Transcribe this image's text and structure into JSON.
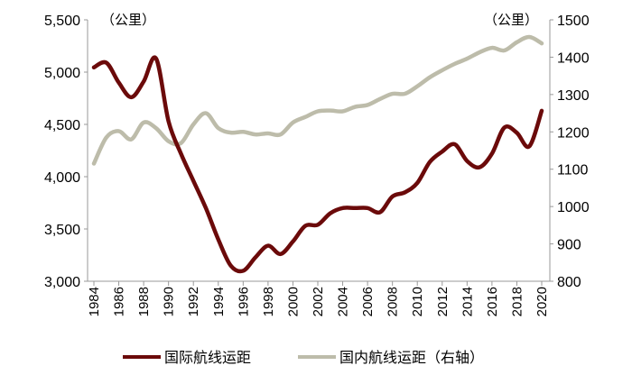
{
  "chart_data": {
    "type": "line",
    "x": [
      1984,
      1985,
      1986,
      1987,
      1988,
      1989,
      1990,
      1991,
      1992,
      1993,
      1994,
      1995,
      1996,
      1997,
      1998,
      1999,
      2000,
      2001,
      2002,
      2003,
      2004,
      2005,
      2006,
      2007,
      2008,
      2009,
      2010,
      2011,
      2012,
      2013,
      2014,
      2015,
      2016,
      2017,
      2018,
      2019,
      2020
    ],
    "x_tick_labels": [
      "1984",
      "1986",
      "1988",
      "1990",
      "1992",
      "1994",
      "1996",
      "1998",
      "2000",
      "2002",
      "2004",
      "2006",
      "2008",
      "2010",
      "2012",
      "2014",
      "2016",
      "2018",
      "2020"
    ],
    "y_left": {
      "unit_label": "（公里）",
      "range": [
        3000,
        5500
      ],
      "ticks": [
        "3,000",
        "3,500",
        "4,000",
        "4,500",
        "5,000",
        "5,500"
      ]
    },
    "y_right": {
      "unit_label": "（公里）",
      "range": [
        800,
        1500
      ],
      "ticks": [
        "800",
        "900",
        "1000",
        "1100",
        "1200",
        "1300",
        "1400",
        "1500"
      ]
    },
    "grid": false,
    "legend_position": "bottom",
    "series": [
      {
        "name": "国际航线运距",
        "axis": "left",
        "color": "#6b0a0a",
        "values": [
          5045,
          5090,
          4900,
          4760,
          4910,
          5130,
          4530,
          4220,
          3960,
          3700,
          3400,
          3150,
          3100,
          3230,
          3340,
          3260,
          3380,
          3530,
          3540,
          3650,
          3700,
          3700,
          3700,
          3660,
          3810,
          3850,
          3940,
          4140,
          4240,
          4310,
          4150,
          4090,
          4220,
          4470,
          4420,
          4290,
          4630
        ]
      },
      {
        "name": "国内航线运距（右轴）",
        "axis": "right",
        "color": "#bdbcaa",
        "values": [
          1115,
          1185,
          1202,
          1180,
          1225,
          1210,
          1175,
          1170,
          1220,
          1250,
          1210,
          1198,
          1200,
          1193,
          1196,
          1193,
          1225,
          1240,
          1255,
          1257,
          1255,
          1267,
          1272,
          1288,
          1302,
          1302,
          1322,
          1346,
          1365,
          1382,
          1396,
          1413,
          1425,
          1418,
          1440,
          1454,
          1437
        ]
      }
    ]
  }
}
